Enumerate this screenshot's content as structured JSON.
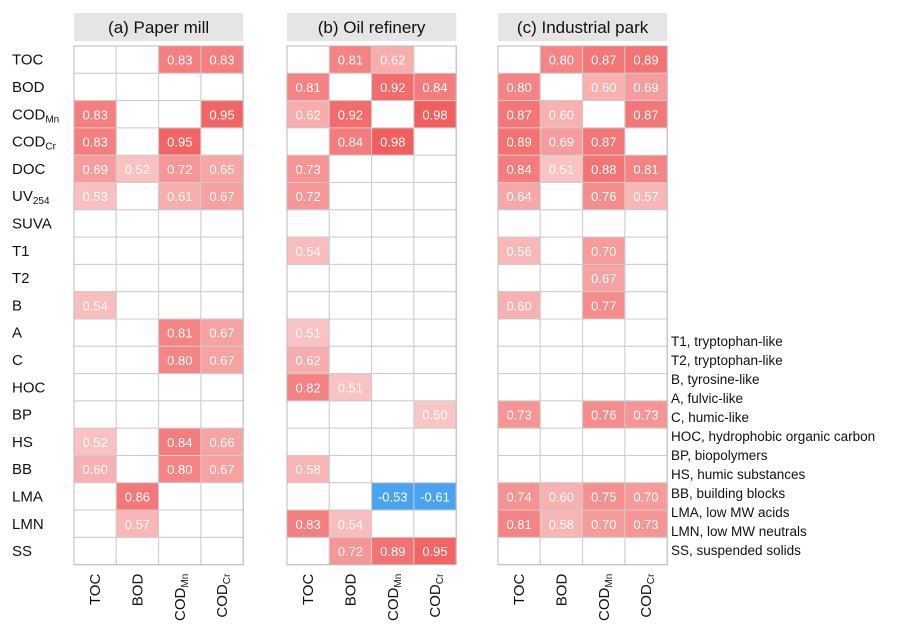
{
  "chart_data": {
    "type": "heatmap",
    "rows": [
      "TOC",
      "BOD",
      "COD_Mn",
      "COD_Cr",
      "DOC",
      "UV_254",
      "SUVA",
      "T1",
      "T2",
      "B",
      "A",
      "C",
      "HOC",
      "BP",
      "HS",
      "BB",
      "LMA",
      "LMN",
      "SS"
    ],
    "row_labels": [
      {
        "main": "TOC",
        "sub": ""
      },
      {
        "main": "BOD",
        "sub": ""
      },
      {
        "main": "COD",
        "sub": "Mn"
      },
      {
        "main": "COD",
        "sub": "Cr"
      },
      {
        "main": "DOC",
        "sub": ""
      },
      {
        "main": "UV",
        "sub": "254"
      },
      {
        "main": "SUVA",
        "sub": ""
      },
      {
        "main": "T1",
        "sub": ""
      },
      {
        "main": "T2",
        "sub": ""
      },
      {
        "main": "B",
        "sub": ""
      },
      {
        "main": "A",
        "sub": ""
      },
      {
        "main": "C",
        "sub": ""
      },
      {
        "main": "HOC",
        "sub": ""
      },
      {
        "main": "BP",
        "sub": ""
      },
      {
        "main": "HS",
        "sub": ""
      },
      {
        "main": "BB",
        "sub": ""
      },
      {
        "main": "LMA",
        "sub": ""
      },
      {
        "main": "LMN",
        "sub": ""
      },
      {
        "main": "SS",
        "sub": ""
      }
    ],
    "columns": [
      {
        "main": "TOC",
        "sub": ""
      },
      {
        "main": "BOD",
        "sub": ""
      },
      {
        "main": "COD",
        "sub": "Mn"
      },
      {
        "main": "COD",
        "sub": "Cr"
      }
    ],
    "panels": [
      {
        "title": "(a) Paper mill",
        "values": [
          [
            null,
            null,
            0.83,
            0.83
          ],
          [
            null,
            null,
            null,
            null
          ],
          [
            0.83,
            null,
            null,
            0.95
          ],
          [
            0.83,
            null,
            0.95,
            null
          ],
          [
            0.69,
            0.52,
            0.72,
            0.65
          ],
          [
            0.53,
            null,
            0.61,
            0.67
          ],
          [
            null,
            null,
            null,
            null
          ],
          [
            null,
            null,
            null,
            null
          ],
          [
            null,
            null,
            null,
            null
          ],
          [
            0.54,
            null,
            null,
            null
          ],
          [
            null,
            null,
            0.81,
            0.67
          ],
          [
            null,
            null,
            0.8,
            0.67
          ],
          [
            null,
            null,
            null,
            null
          ],
          [
            null,
            null,
            null,
            null
          ],
          [
            0.52,
            null,
            0.84,
            0.66
          ],
          [
            0.6,
            null,
            0.8,
            0.67
          ],
          [
            null,
            0.86,
            null,
            null
          ],
          [
            null,
            0.57,
            null,
            null
          ],
          [
            null,
            null,
            null,
            null
          ]
        ]
      },
      {
        "title": "(b) Oil refinery",
        "values": [
          [
            null,
            0.81,
            0.62,
            null
          ],
          [
            0.81,
            null,
            0.92,
            0.84
          ],
          [
            0.62,
            0.92,
            null,
            0.98
          ],
          [
            null,
            0.84,
            0.98,
            null
          ],
          [
            0.73,
            null,
            null,
            null
          ],
          [
            0.72,
            null,
            null,
            null
          ],
          [
            null,
            null,
            null,
            null
          ],
          [
            0.54,
            null,
            null,
            null
          ],
          [
            null,
            null,
            null,
            null
          ],
          [
            null,
            null,
            null,
            null
          ],
          [
            0.51,
            null,
            null,
            null
          ],
          [
            0.62,
            null,
            null,
            null
          ],
          [
            0.82,
            0.51,
            null,
            null
          ],
          [
            null,
            null,
            null,
            0.5
          ],
          [
            null,
            null,
            null,
            null
          ],
          [
            0.58,
            null,
            null,
            null
          ],
          [
            null,
            null,
            -0.53,
            -0.61
          ],
          [
            0.83,
            0.54,
            null,
            null
          ],
          [
            null,
            0.72,
            0.89,
            0.95
          ]
        ]
      },
      {
        "title": "(c) Industrial park",
        "values": [
          [
            null,
            0.8,
            0.87,
            0.89
          ],
          [
            0.8,
            null,
            0.6,
            0.69
          ],
          [
            0.87,
            0.6,
            null,
            0.87
          ],
          [
            0.89,
            0.69,
            0.87,
            null
          ],
          [
            0.84,
            0.51,
            0.88,
            0.81
          ],
          [
            0.64,
            null,
            0.76,
            0.57
          ],
          [
            null,
            null,
            null,
            null
          ],
          [
            0.56,
            null,
            0.7,
            null
          ],
          [
            null,
            null,
            0.67,
            null
          ],
          [
            0.6,
            null,
            0.77,
            null
          ],
          [
            null,
            null,
            null,
            null
          ],
          [
            null,
            null,
            null,
            null
          ],
          [
            null,
            null,
            null,
            null
          ],
          [
            0.73,
            null,
            0.76,
            0.73
          ],
          [
            null,
            null,
            null,
            null
          ],
          [
            null,
            null,
            null,
            null
          ],
          [
            0.74,
            0.6,
            0.75,
            0.7
          ],
          [
            0.81,
            0.58,
            0.7,
            0.73
          ],
          [
            null,
            null,
            null,
            null
          ]
        ]
      }
    ],
    "legend": [
      "T1, tryptophan-like",
      "T2, tryptophan-like",
      "B, tyrosine-like",
      "A, fulvic-like",
      "C, humic-like",
      "HOC, hydrophobic  organic carbon",
      "BP, biopolymers",
      "HS, humic substances",
      "BB, building blocks",
      "LMA, low MW acids",
      "LMN, low MW neutrals",
      "SS, suspended solids"
    ],
    "colors": {
      "positive": "#f25a5a",
      "negative": "#4aa3f0",
      "grid": "#cccccc",
      "title_bg": "#e5e5e5"
    }
  }
}
